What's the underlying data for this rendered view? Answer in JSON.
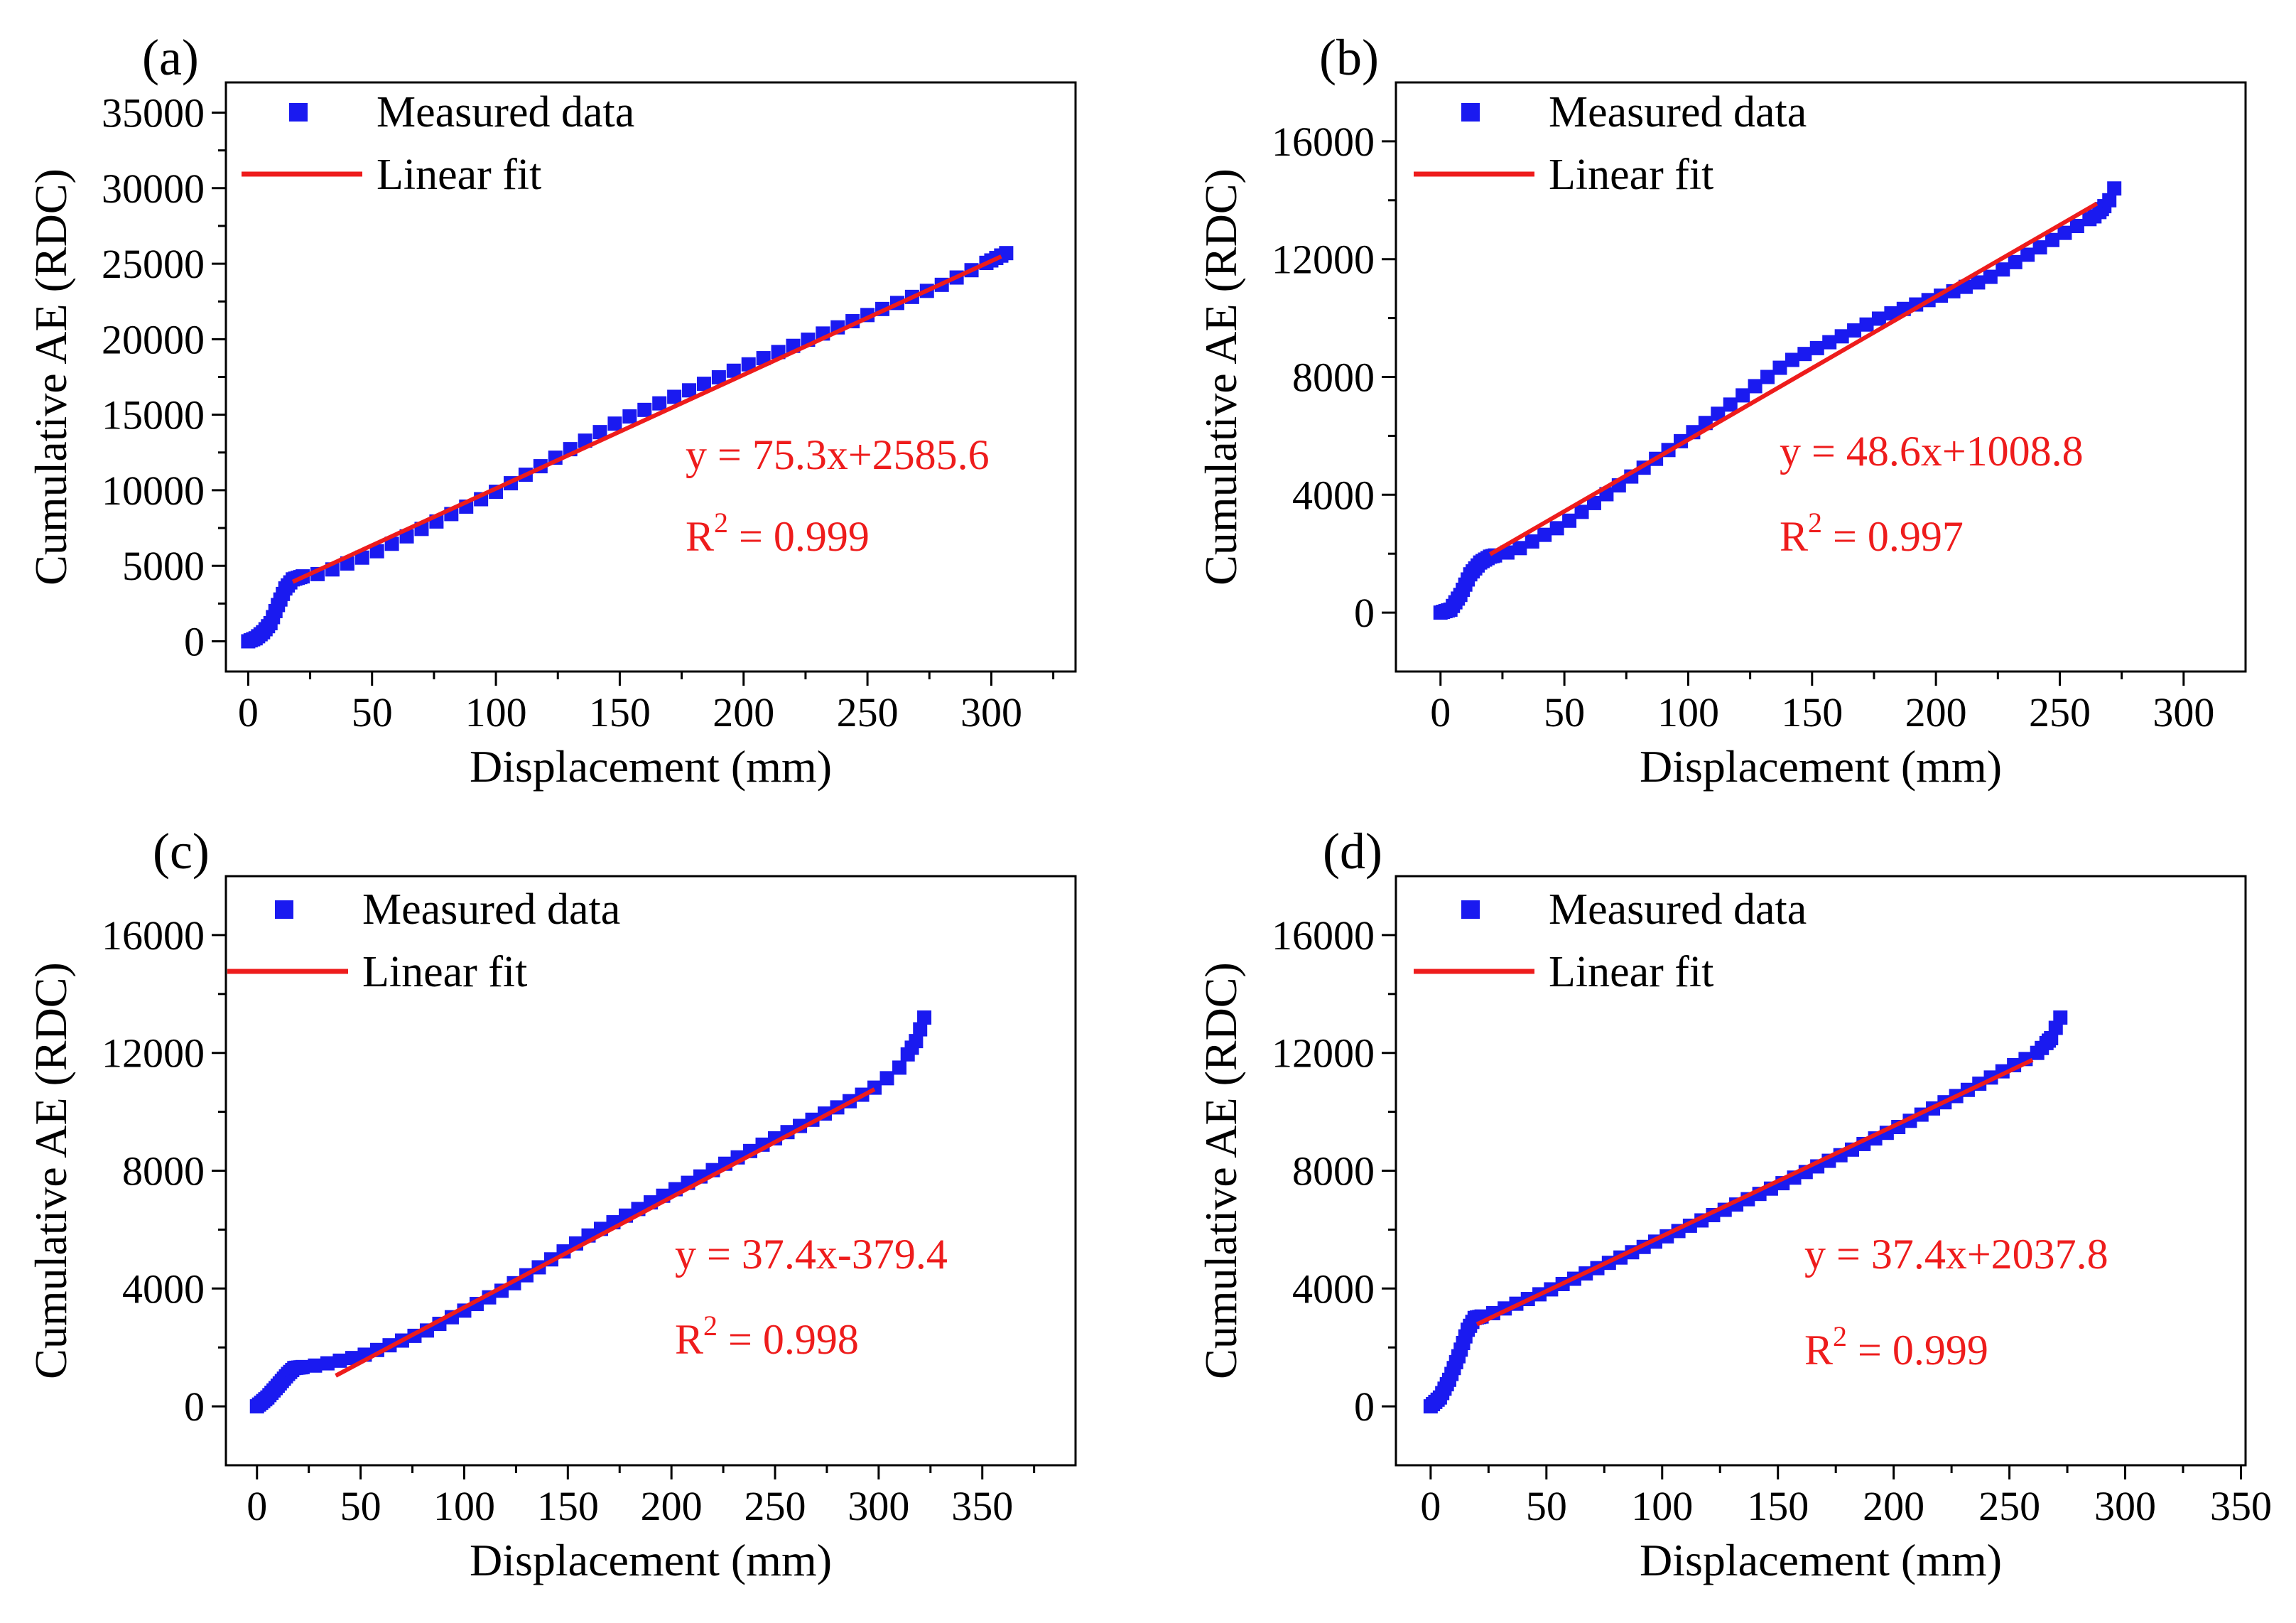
{
  "chart_data": [
    {
      "panel": "(a)",
      "type": "scatter",
      "xlabel": "Displacement (mm)",
      "ylabel": "Cumulative AE (RDC)",
      "xlim": [
        -9,
        334
      ],
      "ylim": [
        -2000,
        37000
      ],
      "xticks": [
        0,
        50,
        100,
        150,
        200,
        250,
        300
      ],
      "yticks": [
        0,
        5000,
        10000,
        15000,
        20000,
        25000,
        30000,
        35000
      ],
      "legend": [
        "Measured data",
        "Linear fit"
      ],
      "fit": {
        "slope": 75.3,
        "intercept": 2585.6,
        "x_range": [
          18,
          304
        ],
        "equation": "y = 75.3x+2585.6",
        "r2_label": "R",
        "r2_sup": "2",
        "r2_value": " = 0.999"
      },
      "series": [
        {
          "name": "Measured data",
          "knots": [
            [
              0,
              0
            ],
            [
              3,
              200
            ],
            [
              6,
              600
            ],
            [
              9,
              1200
            ],
            [
              12,
              2400
            ],
            [
              15,
              3500
            ],
            [
              18,
              4100
            ],
            [
              22,
              4300
            ],
            [
              30,
              4500
            ],
            [
              50,
              5800
            ],
            [
              100,
              9900
            ],
            [
              150,
              14600
            ],
            [
              200,
              18200
            ],
            [
              250,
              21600
            ],
            [
              280,
              23600
            ],
            [
              306,
              25700
            ]
          ],
          "step": 6
        }
      ]
    },
    {
      "panel": "(b)",
      "type": "scatter",
      "xlabel": "Displacement (mm)",
      "ylabel": "Cumulative AE (RDC)",
      "xlim": [
        -18,
        325
      ],
      "ylim": [
        -2000,
        18000
      ],
      "xticks": [
        0,
        50,
        100,
        150,
        200,
        250,
        300
      ],
      "yticks": [
        0,
        4000,
        8000,
        12000,
        16000
      ],
      "legend": [
        "Measured data",
        "Linear fit"
      ],
      "fit": {
        "slope": 48.6,
        "intercept": 1008.8,
        "x_range": [
          20,
          265
        ],
        "equation": "y = 48.6x+1008.8",
        "r2_label": "R",
        "r2_sup": "2",
        "r2_value": " = 0.997"
      },
      "series": [
        {
          "name": "Measured data",
          "knots": [
            [
              0,
              0
            ],
            [
              4,
              100
            ],
            [
              8,
              600
            ],
            [
              12,
              1300
            ],
            [
              16,
              1700
            ],
            [
              20,
              1900
            ],
            [
              30,
              2100
            ],
            [
              50,
              3000
            ],
            [
              100,
              6000
            ],
            [
              140,
              8500
            ],
            [
              180,
              10100
            ],
            [
              220,
              11300
            ],
            [
              250,
              12800
            ],
            [
              265,
              13500
            ],
            [
              270,
              14000
            ],
            [
              272,
              14400
            ]
          ],
          "step": 5
        }
      ]
    },
    {
      "panel": "(c)",
      "type": "scatter",
      "xlabel": "Displacement (mm)",
      "ylabel": "Cumulative AE (RDC)",
      "xlim": [
        -15,
        395
      ],
      "ylim": [
        -2000,
        18000
      ],
      "xticks": [
        0,
        50,
        100,
        150,
        200,
        250,
        300,
        350
      ],
      "yticks": [
        0,
        4000,
        8000,
        12000,
        16000
      ],
      "legend": [
        "Measured data",
        "Linear fit"
      ],
      "fit": {
        "slope": 37.4,
        "intercept": -379.4,
        "x_range": [
          38,
          298
        ],
        "equation": "y = 37.4x-379.4",
        "r2_label": "R",
        "r2_sup": "2",
        "r2_value": " = 0.998"
      },
      "series": [
        {
          "name": "Measured data",
          "knots": [
            [
              0,
              0
            ],
            [
              5,
              300
            ],
            [
              10,
              700
            ],
            [
              15,
              1100
            ],
            [
              18,
              1300
            ],
            [
              30,
              1400
            ],
            [
              50,
              1700
            ],
            [
              80,
              2500
            ],
            [
              120,
              4000
            ],
            [
              160,
              5800
            ],
            [
              200,
              7300
            ],
            [
              250,
              9100
            ],
            [
              290,
              10500
            ],
            [
              300,
              10900
            ],
            [
              310,
              11500
            ],
            [
              318,
              12400
            ],
            [
              322,
              13200
            ]
          ],
          "step": 6
        }
      ]
    },
    {
      "panel": "(d)",
      "type": "scatter",
      "xlabel": "Displacement (mm)",
      "ylabel": "Cumulative AE (RDC)",
      "xlim": [
        -15,
        352
      ],
      "ylim": [
        -2000,
        18000
      ],
      "xticks": [
        0,
        50,
        100,
        150,
        200,
        250,
        300,
        350
      ],
      "yticks": [
        0,
        4000,
        8000,
        12000,
        16000
      ],
      "legend": [
        "Measured data",
        "Linear fit"
      ],
      "fit": {
        "slope": 37.4,
        "intercept": 2037.8,
        "x_range": [
          20,
          260
        ],
        "equation": "y = 37.4x+2037.8",
        "r2_label": "R",
        "r2_sup": "2",
        "r2_value": " = 0.999"
      },
      "series": [
        {
          "name": "Measured data",
          "knots": [
            [
              0,
              0
            ],
            [
              4,
              300
            ],
            [
              8,
              900
            ],
            [
              12,
              1700
            ],
            [
              16,
              2600
            ],
            [
              19,
              3000
            ],
            [
              25,
              3100
            ],
            [
              50,
              3900
            ],
            [
              100,
              5700
            ],
            [
              150,
              7500
            ],
            [
              200,
              9400
            ],
            [
              250,
              11500
            ],
            [
              262,
              12000
            ],
            [
              268,
              12500
            ],
            [
              272,
              13200
            ]
          ],
          "step": 5
        }
      ]
    }
  ]
}
